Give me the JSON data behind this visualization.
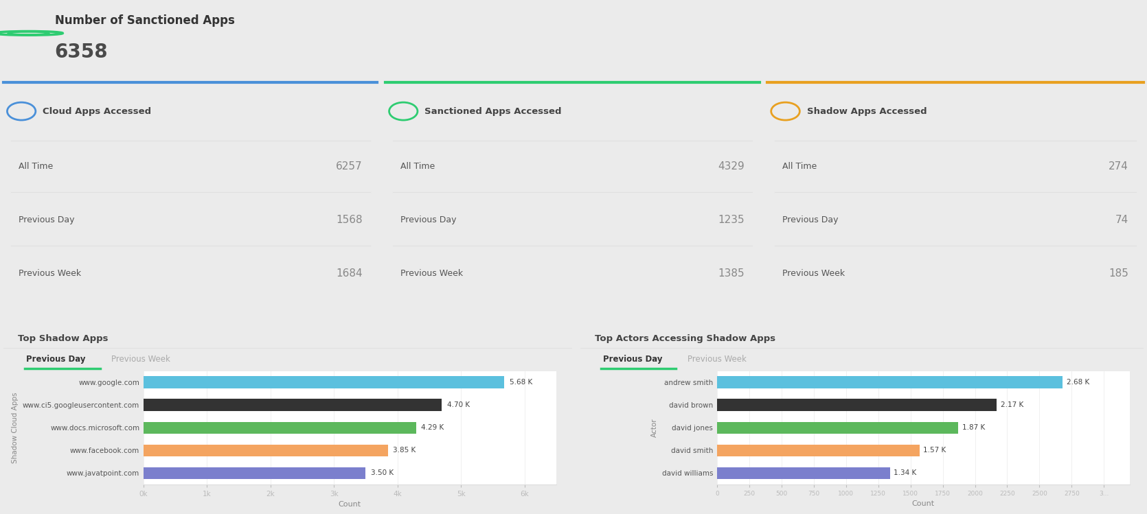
{
  "bg_color": "#ebebeb",
  "card_bg": "#ffffff",
  "header_title": "Number of Sanctioned Apps",
  "header_value": "6358",
  "header_icon_color": "#2ecc71",
  "card1_title": "Cloud Apps Accessed",
  "card1_border_color": "#4a90d9",
  "card1_rows": [
    {
      "label": "All Time",
      "value": "6257"
    },
    {
      "label": "Previous Day",
      "value": "1568"
    },
    {
      "label": "Previous Week",
      "value": "1684"
    }
  ],
  "card2_title": "Sanctioned Apps Accessed",
  "card2_border_color": "#2ecc71",
  "card2_rows": [
    {
      "label": "All Time",
      "value": "4329"
    },
    {
      "label": "Previous Day",
      "value": "1235"
    },
    {
      "label": "Previous Week",
      "value": "1385"
    }
  ],
  "card3_title": "Shadow Apps Accessed",
  "card3_border_color": "#e8a020",
  "card3_rows": [
    {
      "label": "All Time",
      "value": "274"
    },
    {
      "label": "Previous Day",
      "value": "74"
    },
    {
      "label": "Previous Week",
      "value": "185"
    }
  ],
  "chart1_title": "Top Shadow Apps",
  "chart1_tab1": "Previous Day",
  "chart1_tab2": "Previous Week",
  "chart1_ylabel": "Shadow Cloud Apps",
  "chart1_xlabel": "Count",
  "chart1_categories": [
    "www.javatpoint.com",
    "www.facebook.com",
    "www.docs.microsoft.com",
    "www.ci5.googleusercontent.com",
    "www.google.com"
  ],
  "chart1_values": [
    3500,
    3850,
    4290,
    4700,
    5680
  ],
  "chart1_labels": [
    "3.50 K",
    "3.85 K",
    "4.29 K",
    "4.70 K",
    "5.68 K"
  ],
  "chart1_colors": [
    "#7b7fcd",
    "#f4a460",
    "#5cb85c",
    "#333333",
    "#5bc0de"
  ],
  "chart1_xticks": [
    0,
    1000,
    2000,
    3000,
    4000,
    5000,
    6000
  ],
  "chart1_xticklabels": [
    "0k",
    "1k",
    "2k",
    "3k",
    "4k",
    "5k",
    "6k"
  ],
  "chart2_title": "Top Actors Accessing Shadow Apps",
  "chart2_tab1": "Previous Day",
  "chart2_tab2": "Previous Week",
  "chart2_ylabel": "Actor",
  "chart2_xlabel": "Count",
  "chart2_categories": [
    "david williams",
    "david smith",
    "david jones",
    "david brown",
    "andrew smith"
  ],
  "chart2_values": [
    1340,
    1570,
    1870,
    2170,
    2680
  ],
  "chart2_labels": [
    "1.34 K",
    "1.57 K",
    "1.87 K",
    "2.17 K",
    "2.68 K"
  ],
  "chart2_colors": [
    "#7b7fcd",
    "#f4a460",
    "#5cb85c",
    "#333333",
    "#5bc0de"
  ],
  "chart2_xticks": [
    0,
    250,
    500,
    750,
    1000,
    1250,
    1500,
    1750,
    2000,
    2250,
    2500,
    2750,
    3000
  ],
  "chart2_xticklabels": [
    "0",
    "250",
    "500",
    "750",
    "1000",
    "1250",
    "1500",
    "1750",
    "2000",
    "2250",
    "2500",
    "2750",
    "3..."
  ]
}
